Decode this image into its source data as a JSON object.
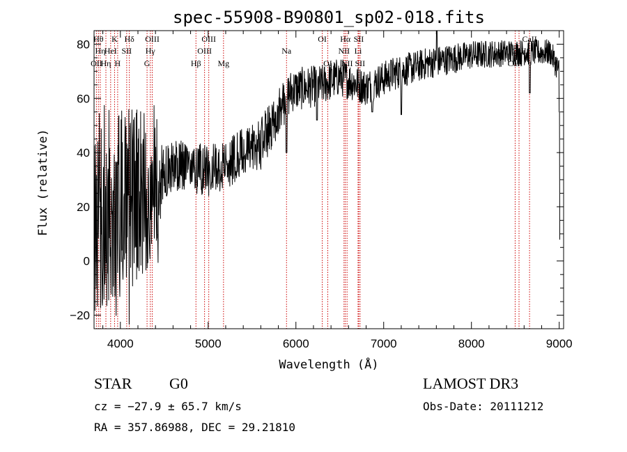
{
  "chart_data": {
    "type": "line",
    "title": "spec-55908-B90801_sp02-018.fits",
    "xlabel": "Wavelength (Å)",
    "ylabel": "Flux (relative)",
    "xlim": [
      3700,
      9050
    ],
    "ylim": [
      -25,
      85
    ],
    "xticks": [
      4000,
      5000,
      6000,
      7000,
      8000,
      9000
    ],
    "xtick_labels": [
      "4000",
      "5000",
      "6000",
      "7000",
      "8000",
      "9000"
    ],
    "yticks": [
      -20,
      0,
      20,
      40,
      60,
      80
    ],
    "ytick_labels": [
      "−20",
      "0",
      "20",
      "40",
      "60",
      "80"
    ],
    "series": [
      {
        "name": "flux",
        "noise": [
          [
            3700,
            25
          ],
          [
            4400,
            18
          ],
          [
            4500,
            6
          ],
          [
            5600,
            6
          ],
          [
            6000,
            5
          ],
          [
            7000,
            4
          ],
          [
            8500,
            3
          ],
          [
            9050,
            3
          ]
        ],
        "continuum": [
          [
            3700,
            18
          ],
          [
            4000,
            22
          ],
          [
            4300,
            25
          ],
          [
            4500,
            33
          ],
          [
            4700,
            36
          ],
          [
            5000,
            33
          ],
          [
            5300,
            38
          ],
          [
            5600,
            43
          ],
          [
            5800,
            55
          ],
          [
            5950,
            63
          ],
          [
            6300,
            65
          ],
          [
            6500,
            68
          ],
          [
            6800,
            64
          ],
          [
            7100,
            69
          ],
          [
            7500,
            73
          ],
          [
            8000,
            76
          ],
          [
            8500,
            77
          ],
          [
            8900,
            77
          ],
          [
            9000,
            70
          ]
        ],
        "features": [
          {
            "x": 5893,
            "y": 40
          },
          {
            "x": 6240,
            "y": 52
          },
          {
            "x": 6870,
            "y": 55
          },
          {
            "x": 7200,
            "y": 54
          },
          {
            "x": 7605,
            "y": 87
          },
          {
            "x": 8665,
            "y": 62
          },
          {
            "x": 9000,
            "y": 55
          },
          {
            "x": 9010,
            "y": 8
          }
        ]
      }
    ],
    "line_markers": [
      {
        "x": 3727,
        "label": "OII",
        "row": 2
      },
      {
        "x": 3750,
        "label": "Hθ",
        "row": 0
      },
      {
        "x": 3771,
        "label": "Hη",
        "row": 1
      },
      {
        "x": 3835,
        "label": "Hη",
        "row": 2
      },
      {
        "x": 3889,
        "label": "HeI",
        "row": 1
      },
      {
        "x": 3934,
        "label": "K",
        "row": 0
      },
      {
        "x": 3969,
        "label": "H",
        "row": 2
      },
      {
        "x": 4072,
        "label": "SII",
        "row": 1
      },
      {
        "x": 4102,
        "label": "Hδ",
        "row": 0
      },
      {
        "x": 4304,
        "label": "G",
        "row": 2
      },
      {
        "x": 4341,
        "label": "Hγ",
        "row": 1
      },
      {
        "x": 4363,
        "label": "OIII",
        "row": 0
      },
      {
        "x": 4861,
        "label": "Hβ",
        "row": 2
      },
      {
        "x": 4959,
        "label": "OIII",
        "row": 1
      },
      {
        "x": 5007,
        "label": "OIII",
        "row": 0
      },
      {
        "x": 5175,
        "label": "Mg",
        "row": 2
      },
      {
        "x": 5893,
        "label": "Na",
        "row": 1
      },
      {
        "x": 6300,
        "label": "OI",
        "row": 0
      },
      {
        "x": 6363,
        "label": "OI",
        "row": 2
      },
      {
        "x": 6548,
        "label": "NII",
        "row": 1
      },
      {
        "x": 6563,
        "label": "Hα",
        "row": 0
      },
      {
        "x": 6583,
        "label": "NII",
        "row": 2
      },
      {
        "x": 6708,
        "label": "Li",
        "row": 1
      },
      {
        "x": 6716,
        "label": "SII",
        "row": 0
      },
      {
        "x": 6731,
        "label": "SII",
        "row": 2
      },
      {
        "x": 8498,
        "label": "CaII",
        "row": 2
      },
      {
        "x": 8542,
        "label": "CaII",
        "row": 1
      },
      {
        "x": 8662,
        "label": "CaII",
        "row": 0
      }
    ]
  },
  "info": {
    "class_label": "STAR",
    "subclass": "G0",
    "survey": "LAMOST DR3",
    "cz": "cz = −27.9 ± 65.7 km/s",
    "obs_date": "Obs-Date: 20111212",
    "coords": "RA = 357.86988, DEC =  29.21810"
  },
  "colors": {
    "spectrum": "#000000",
    "marker": "#cc0000",
    "axes": "#000000",
    "background": "#ffffff"
  }
}
